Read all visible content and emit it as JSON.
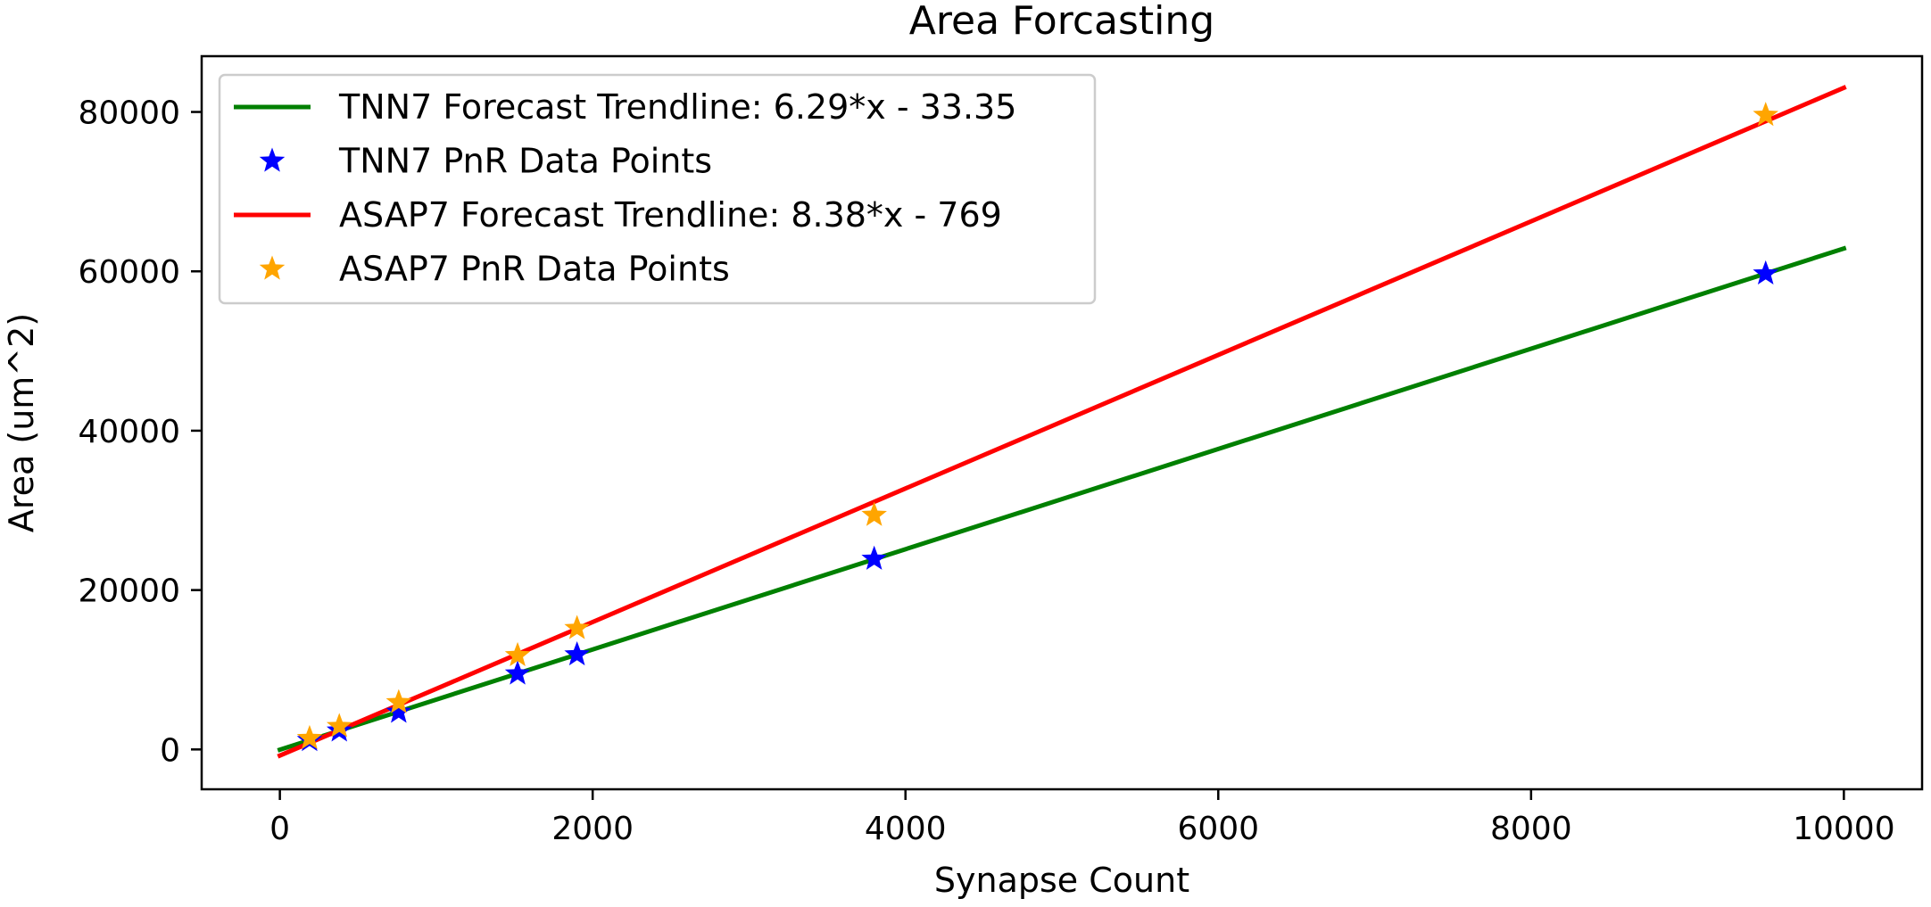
{
  "chart_data": {
    "type": "scatter",
    "title": "Area Forcasting",
    "xlabel": "Synapse Count",
    "ylabel": "Area (um^2)",
    "xlim": [
      -500,
      10500
    ],
    "ylim": [
      -5000,
      87000
    ],
    "xticks": [
      0,
      2000,
      4000,
      6000,
      8000,
      10000
    ],
    "yticks": [
      0,
      20000,
      40000,
      60000,
      80000
    ],
    "grid": false,
    "legend_position": "top-left",
    "series": [
      {
        "name": "TNN7 Forecast Trendline: 6.29*x - 33.35",
        "kind": "line",
        "color": "#008000",
        "slope": 6.29,
        "intercept": -33.35,
        "x_range": [
          0,
          10000
        ]
      },
      {
        "name": "TNN7 PnR Data Points",
        "kind": "scatter",
        "marker": "star",
        "color": "#0000ff",
        "x": [
          190,
          380,
          760,
          1520,
          1900,
          3800,
          9500
        ],
        "y": [
          1150,
          2350,
          4700,
          9500,
          11900,
          23900,
          59700
        ]
      },
      {
        "name": "ASAP7 Forecast Trendline: 8.38*x - 769",
        "kind": "line",
        "color": "#ff0000",
        "slope": 8.38,
        "intercept": -769,
        "x_range": [
          0,
          10000
        ]
      },
      {
        "name": "ASAP7 PnR Data Points",
        "kind": "scatter",
        "marker": "star",
        "color": "#ffa500",
        "x": [
          190,
          380,
          760,
          1520,
          1900,
          3800,
          9500
        ],
        "y": [
          1400,
          2900,
          5900,
          11800,
          15200,
          29400,
          79600
        ]
      }
    ]
  }
}
